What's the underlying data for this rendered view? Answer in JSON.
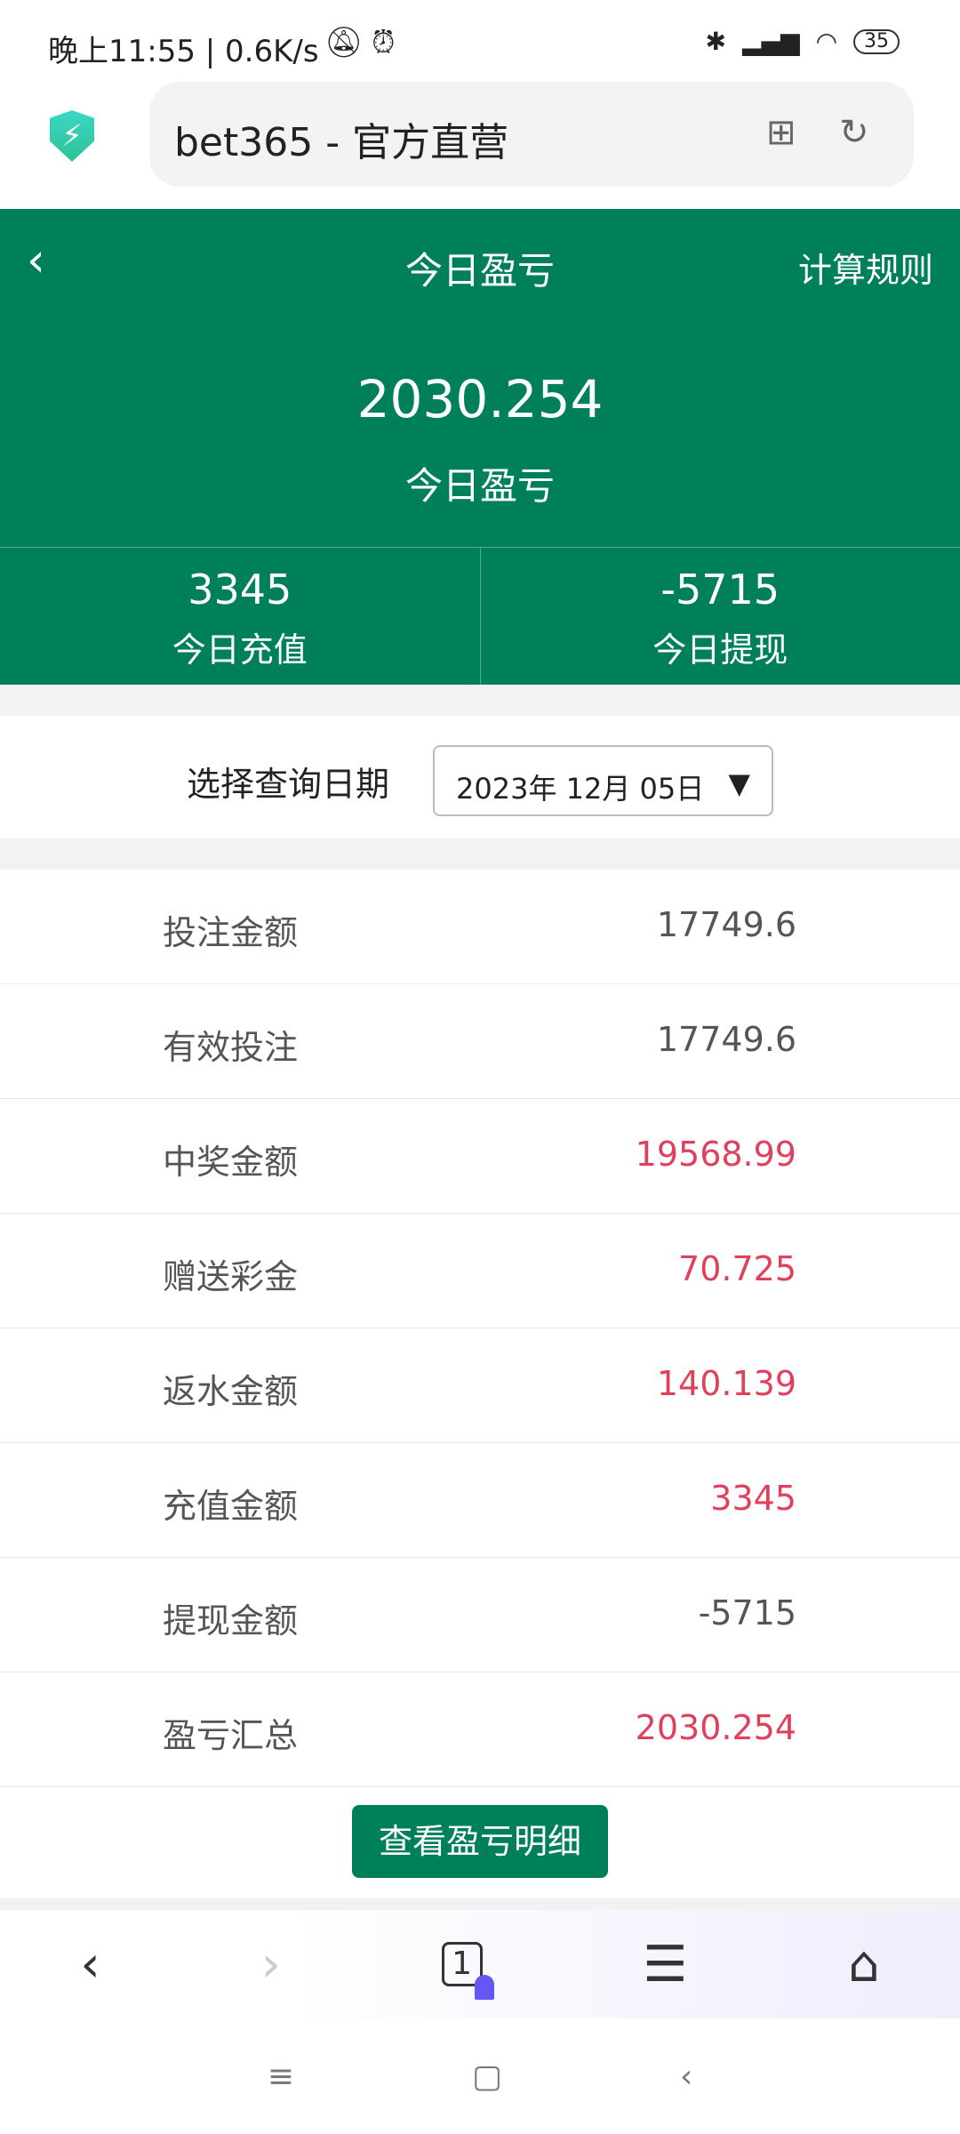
{
  "status_bar": {
    "left": "晚上11:55 | 0.6K/s",
    "battery": "35"
  },
  "browser": {
    "url_title": "bet365 - 官方直营",
    "tab_count": "1"
  },
  "header": {
    "title": "今日盈亏",
    "rules": "计算规则",
    "profit_value": "2030.254",
    "profit_label": "今日盈亏",
    "stats": [
      {
        "value": "3345",
        "label": "今日充值"
      },
      {
        "value": "-5715",
        "label": "今日提现"
      }
    ]
  },
  "date_query": {
    "label": "选择查询日期",
    "value": "2023年 12月 05日"
  },
  "rows": [
    {
      "label": "投注金额",
      "value": "17749.6",
      "color": "#555555"
    },
    {
      "label": "有效投注",
      "value": "17749.6",
      "color": "#555555"
    },
    {
      "label": "中奖金额",
      "value": "19568.99",
      "color": "#e0405c"
    },
    {
      "label": "赠送彩金",
      "value": "70.725",
      "color": "#e0405c"
    },
    {
      "label": "返水金额",
      "value": "140.139",
      "color": "#e0405c"
    },
    {
      "label": "充值金额",
      "value": "3345",
      "color": "#e0405c"
    },
    {
      "label": "提现金额",
      "value": "-5715",
      "color": "#555555"
    },
    {
      "label": "盈亏汇总",
      "value": "2030.254",
      "color": "#e0405c"
    }
  ],
  "detail_button": "查看盈亏明细",
  "accent": "#00805a"
}
